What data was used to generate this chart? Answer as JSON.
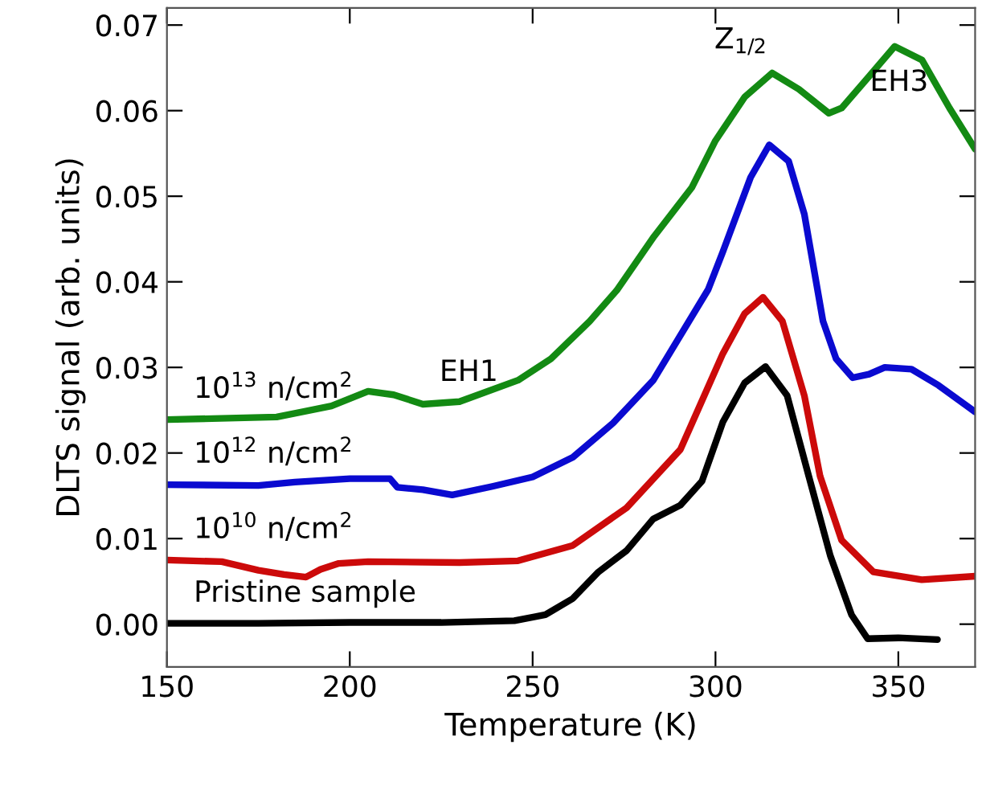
{
  "chart_data": {
    "type": "line",
    "xlabel": "Temperature (K)",
    "ylabel": "DLTS signal (arb. units)",
    "xlim": [
      150,
      371
    ],
    "ylim": [
      -0.005,
      0.072
    ],
    "xticks": [
      150,
      200,
      250,
      300,
      350
    ],
    "yticks": [
      {
        "value": 0,
        "label": "0.00"
      },
      0.01,
      0.02,
      0.03,
      0.04,
      0.05,
      0.06,
      0.07
    ],
    "grid": false,
    "legend": false,
    "line_style": "solid",
    "marker": "none",
    "series": [
      {
        "name": "10$^{13}$ n/cm$^{2}$",
        "color": "#138a13",
        "x": [
          150,
          180,
          195,
          205,
          212,
          220,
          230,
          246,
          255,
          265.6,
          273,
          283.2,
          293.5,
          300,
          308,
          315.5,
          322.8,
          331,
          334.5,
          342,
          349,
          356.5,
          364,
          371
        ],
        "values": [
          0.0239,
          0.0242,
          0.0255,
          0.0272,
          0.0268,
          0.0257,
          0.026,
          0.0285,
          0.031,
          0.0354,
          0.039,
          0.0453,
          0.051,
          0.0565,
          0.0616,
          0.0644,
          0.0625,
          0.0597,
          0.0603,
          0.064,
          0.0675,
          0.0659,
          0.0603,
          0.0555
        ]
      },
      {
        "name": "10$^{12}$ n/cm$^{2}$",
        "color": "#0a0ad0",
        "x": [
          150,
          175,
          185,
          200,
          211,
          213,
          220,
          228,
          239,
          250,
          261,
          272,
          283,
          298,
          302,
          309.6,
          314.7,
          320,
          324.3,
          329.4,
          333,
          337.5,
          342,
          346.3,
          353.6,
          361,
          371
        ],
        "values": [
          0.0163,
          0.0162,
          0.0166,
          0.017,
          0.017,
          0.016,
          0.0157,
          0.0151,
          0.0161,
          0.0172,
          0.0195,
          0.0235,
          0.0285,
          0.0391,
          0.0435,
          0.0522,
          0.056,
          0.0541,
          0.0479,
          0.0354,
          0.031,
          0.0288,
          0.0292,
          0.03,
          0.0298,
          0.0279,
          0.0248
        ]
      },
      {
        "name": "10$^{10}$ n/cm$^{2}$",
        "color": "#cc0a0a",
        "x": [
          150,
          165,
          175,
          182,
          188,
          192,
          197,
          205,
          230,
          246,
          261,
          275.7,
          290.4,
          302,
          308,
          313,
          318.3,
          324.3,
          328.6,
          334.5,
          343.2,
          356.4,
          371
        ],
        "values": [
          0.0075,
          0.0073,
          0.0063,
          0.0058,
          0.0055,
          0.0064,
          0.0071,
          0.0073,
          0.0072,
          0.0074,
          0.0092,
          0.0136,
          0.0204,
          0.0316,
          0.0363,
          0.0382,
          0.0354,
          0.0267,
          0.0173,
          0.0098,
          0.0061,
          0.0052,
          0.0056
        ]
      },
      {
        "name": "Pristine sample",
        "color": "#000000",
        "x": [
          150,
          175,
          200,
          225,
          245,
          253.5,
          261,
          268,
          275.7,
          283,
          290.4,
          296.3,
          302,
          308,
          313.7,
          319.6,
          325.5,
          331.4,
          337.2,
          341.6,
          350,
          360.7
        ],
        "values": [
          0.0001,
          0.0001,
          0.0002,
          0.0002,
          0.0004,
          0.0011,
          0.003,
          0.0061,
          0.0086,
          0.0123,
          0.0139,
          0.0167,
          0.0236,
          0.0282,
          0.0301,
          0.0267,
          0.0173,
          0.008,
          0.0011,
          -0.0017,
          -0.0016,
          -0.0018
        ]
      }
    ],
    "annotations": [
      {
        "text": "Z$_{1/2}$",
        "x": 315.5,
        "y": 0.0644
      },
      {
        "text": "EH3",
        "x": 349,
        "y": 0.0675
      },
      {
        "text": "EH1",
        "x": 205,
        "y": 0.0272
      }
    ]
  }
}
